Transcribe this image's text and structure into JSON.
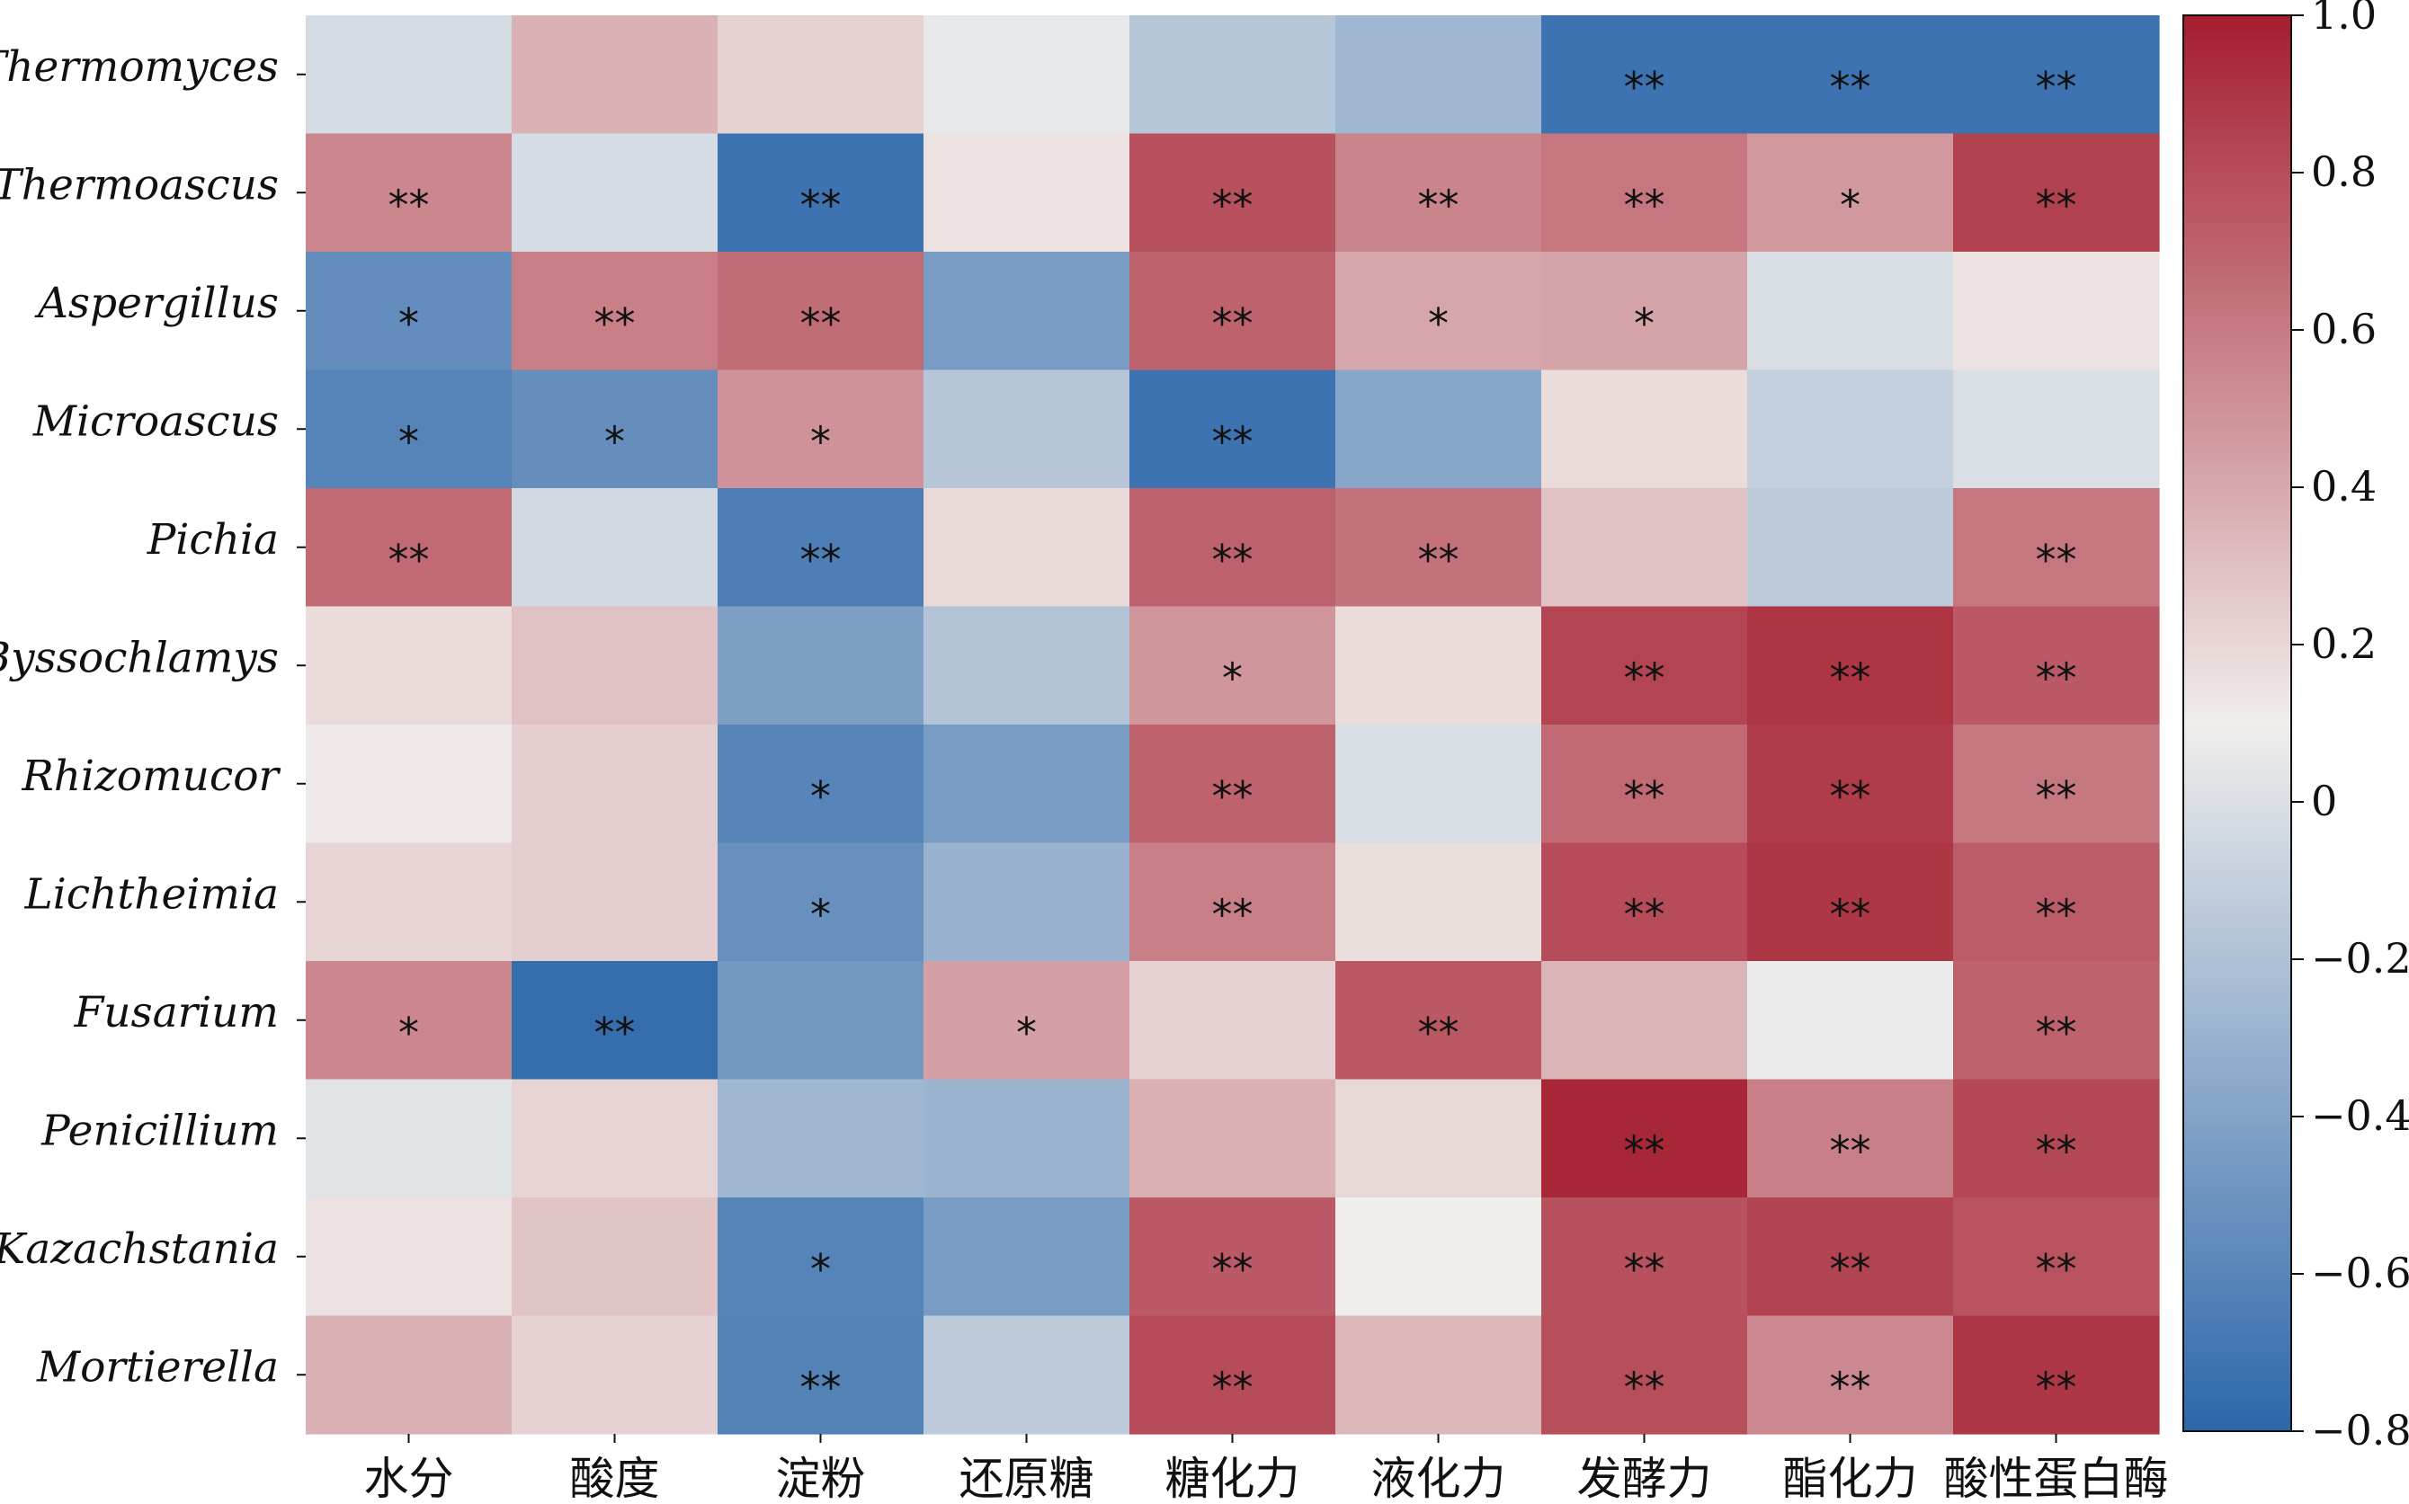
{
  "chart_data": {
    "type": "heatmap",
    "rows": [
      "Thermomyces",
      "Thermoascus",
      "Aspergillus",
      "Microascus",
      "Pichia",
      "Byssochlamys",
      "Rhizomucor",
      "Lichtheimia",
      "Fusarium",
      "Penicillium",
      "Kazachstania",
      "Mortierella"
    ],
    "columns": [
      "水分",
      "酸度",
      "淀粉",
      "还原糖",
      "糖化力",
      "液化力",
      "发酵力",
      "酯化力",
      "酸性蛋白酶"
    ],
    "values": [
      [
        -0.03,
        0.36,
        0.22,
        0.06,
        -0.17,
        -0.27,
        -0.72,
        -0.72,
        -0.72
      ],
      [
        0.55,
        -0.02,
        -0.72,
        0.15,
        0.78,
        0.56,
        0.62,
        0.47,
        0.85
      ],
      [
        -0.55,
        0.58,
        0.66,
        -0.45,
        0.7,
        0.41,
        0.42,
        -0.01,
        0.15
      ],
      [
        -0.61,
        -0.54,
        0.5,
        -0.16,
        -0.72,
        -0.38,
        0.18,
        -0.1,
        0.0
      ],
      [
        0.67,
        -0.04,
        -0.65,
        0.19,
        0.71,
        0.64,
        0.29,
        -0.14,
        0.62
      ],
      [
        0.18,
        0.29,
        -0.43,
        -0.18,
        0.48,
        0.18,
        0.83,
        0.9,
        0.74
      ],
      [
        0.12,
        0.24,
        -0.6,
        -0.45,
        0.7,
        -0.01,
        0.67,
        0.87,
        0.61
      ],
      [
        0.21,
        0.24,
        -0.53,
        -0.3,
        0.58,
        0.17,
        0.8,
        0.89,
        0.73
      ],
      [
        0.55,
        -0.76,
        -0.48,
        0.44,
        0.22,
        0.75,
        0.35,
        0.08,
        0.7
      ],
      [
        0.03,
        0.21,
        -0.27,
        -0.29,
        0.37,
        0.2,
        0.96,
        0.58,
        0.82
      ],
      [
        0.15,
        0.28,
        -0.61,
        -0.45,
        0.74,
        0.1,
        0.78,
        0.84,
        0.77
      ],
      [
        0.36,
        0.22,
        -0.62,
        -0.14,
        0.8,
        0.34,
        0.79,
        0.54,
        0.89
      ]
    ],
    "significance": [
      [
        "",
        "",
        "",
        "",
        "",
        "",
        "**",
        "**",
        "**"
      ],
      [
        "**",
        "",
        "**",
        "",
        "**",
        "**",
        "**",
        "*",
        "**"
      ],
      [
        "*",
        "**",
        "**",
        "",
        "**",
        "*",
        "*",
        "",
        ""
      ],
      [
        "*",
        "*",
        "*",
        "",
        "**",
        "",
        "",
        "",
        ""
      ],
      [
        "**",
        "",
        "**",
        "",
        "**",
        "**",
        "",
        "",
        "**"
      ],
      [
        "",
        "",
        "",
        "",
        "*",
        "",
        "**",
        "**",
        "**"
      ],
      [
        "",
        "",
        "*",
        "",
        "**",
        "",
        "**",
        "**",
        "**"
      ],
      [
        "",
        "",
        "*",
        "",
        "**",
        "",
        "**",
        "**",
        "**"
      ],
      [
        "*",
        "**",
        "",
        "*",
        "",
        "**",
        "",
        "",
        "**"
      ],
      [
        "",
        "",
        "",
        "",
        "",
        "",
        "**",
        "**",
        "**"
      ],
      [
        "",
        "",
        "*",
        "",
        "**",
        "",
        "**",
        "**",
        "**"
      ],
      [
        "",
        "",
        "**",
        "",
        "**",
        "",
        "**",
        "**",
        "**"
      ]
    ],
    "colorbar": {
      "min": -0.8,
      "max": 1.0,
      "ticks": [
        "1.0",
        "0.8",
        "0.6",
        "0.4",
        "0.2",
        "0",
        "−0.2",
        "−0.4",
        "−0.6",
        "−0.8"
      ],
      "tick_values": [
        1.0,
        0.8,
        0.6,
        0.4,
        0.2,
        0.0,
        -0.2,
        -0.4,
        -0.6,
        -0.8
      ]
    },
    "colors": {
      "low": "#2c67aa",
      "mid": "#f0eeec",
      "high": "#a51e2f"
    },
    "legend_position": "right",
    "grid": false
  }
}
